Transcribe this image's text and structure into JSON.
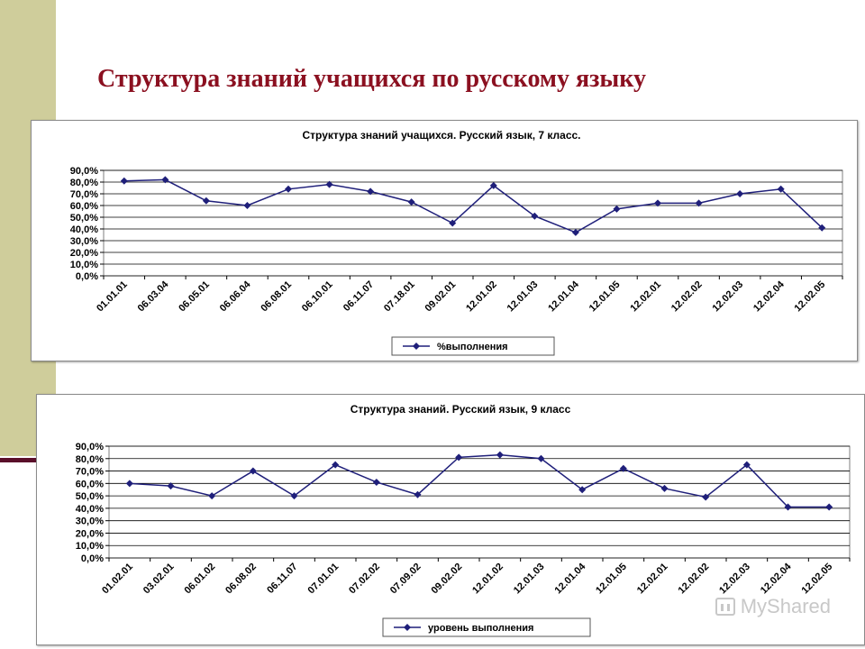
{
  "slide": {
    "title": "Структура знаний учащихся по русскому языку"
  },
  "watermark": {
    "text": "MyShared",
    "icon": "myshared-logo-icon"
  },
  "chart_data": [
    {
      "type": "line",
      "title": "Структура знаний учащихся. Русский язык, 7 класс.",
      "categories": [
        "01.01.01",
        "06.03.04",
        "06.05.01",
        "06.06.04",
        "06.08.01",
        "06.10.01",
        "06.11.07",
        "07.18.01",
        "09.02.01",
        "12.01.02",
        "12.01.03",
        "12.01.04",
        "12.01.05",
        "12.02.01",
        "12.02.02",
        "12.02.03",
        "12.02.04",
        "12.02.05"
      ],
      "series": [
        {
          "name": "%выполнения",
          "values": [
            81,
            82,
            64,
            60,
            74,
            78,
            72,
            63,
            45,
            77,
            51,
            37,
            57,
            62,
            62,
            70,
            74,
            41
          ]
        }
      ],
      "y_ticks": [
        "0,0%",
        "10,0%",
        "20,0%",
        "30,0%",
        "40,0%",
        "50,0%",
        "60,0%",
        "70,0%",
        "80,0%",
        "90,0%"
      ],
      "ylim": [
        0,
        90
      ],
      "grid": true,
      "legend_position": "bottom",
      "line_color": "#1f1f7a"
    },
    {
      "type": "line",
      "title": "Структура знаний. Русский язык, 9 класс",
      "categories": [
        "01.02.01",
        "03.02.01",
        "06.01.02",
        "06.08.02",
        "06.11.07",
        "07.01.01",
        "07.02.02",
        "07.09.02",
        "09.02.02",
        "12.01.02",
        "12.01.03",
        "12.01.04",
        "12.01.05",
        "12.02.01",
        "12.02.02",
        "12.02.03",
        "12.02.04",
        "12.02.05"
      ],
      "series": [
        {
          "name": "уровень выполнения",
          "values": [
            60,
            58,
            50,
            70,
            50,
            75,
            61,
            51,
            81,
            83,
            80,
            55,
            72,
            56,
            49,
            75,
            41,
            41
          ]
        }
      ],
      "y_ticks": [
        "0,0%",
        "10,0%",
        "20,0%",
        "30,0%",
        "40,0%",
        "50,0%",
        "60,0%",
        "70,0%",
        "80,0%",
        "90,0%"
      ],
      "ylim": [
        0,
        90
      ],
      "grid": true,
      "legend_position": "bottom",
      "line_color": "#1f1f7a"
    }
  ]
}
